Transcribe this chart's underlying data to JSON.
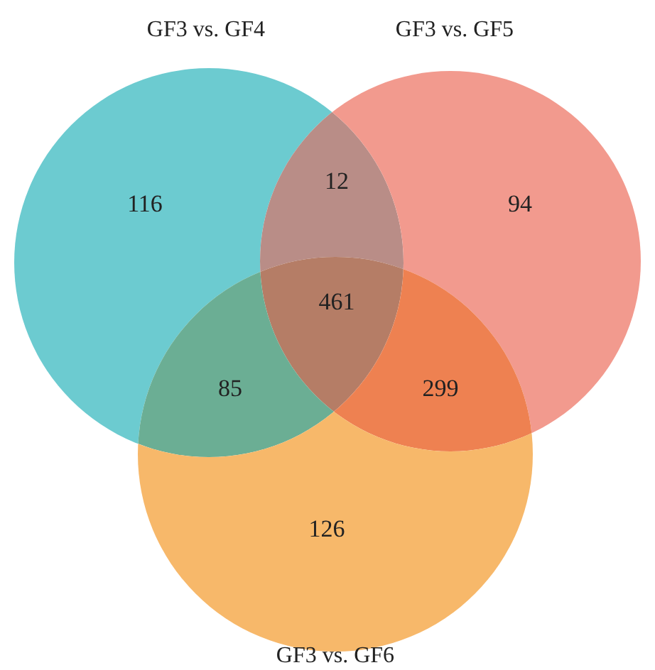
{
  "chart_data": {
    "type": "other",
    "categories": [
      null,
      null,
      null,
      null,
      null,
      null,
      null
    ],
    "values": [
      116,
      12,
      94,
      461,
      85,
      299,
      126
    ],
    "colors": [
      "#6ccbd0",
      "#b98d87",
      "#f29a8e",
      "#b57d66",
      "#6bae94",
      "#ee8151",
      "#f7b86a"
    ],
    "annotations": [
      "GF3 vs. GF4",
      "GF3 vs. GF5",
      "GF3 vs. GF6"
    ],
    "data_labels": true
  }
}
